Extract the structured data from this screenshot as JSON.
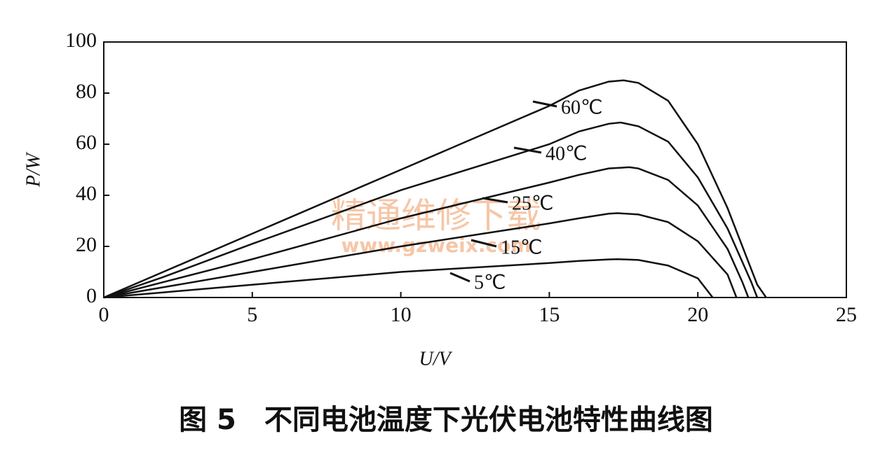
{
  "chart_data": {
    "type": "line",
    "caption": "图 5　不同电池温度下光伏电池特性曲线图",
    "xlabel": "U/V",
    "ylabel": "P/W",
    "watermark": "精通维修下载",
    "watermark_url": "www.gzweix.com",
    "xlim": [
      0,
      25
    ],
    "ylim": [
      0,
      100
    ],
    "xticks": [
      0,
      5,
      10,
      15,
      20,
      25
    ],
    "yticks": [
      0,
      20,
      40,
      60,
      80,
      100
    ],
    "grid": false,
    "series": [
      {
        "name": "60℃",
        "color": "#111111",
        "x": [
          0,
          2,
          5,
          10,
          15,
          16,
          17,
          17.5,
          18,
          19,
          20,
          21,
          22,
          22.3
        ],
        "values": [
          0,
          10,
          25,
          50,
          75,
          81,
          84.5,
          85,
          84,
          77,
          60,
          35,
          5,
          0
        ]
      },
      {
        "name": "40℃",
        "color": "#111111",
        "x": [
          0,
          2,
          5,
          10,
          15,
          16,
          17,
          17.4,
          18,
          19,
          20,
          21,
          21.8,
          22.0
        ],
        "values": [
          0,
          8,
          21,
          42,
          60,
          65,
          68,
          68.5,
          67,
          61,
          47,
          27,
          6,
          0
        ]
      },
      {
        "name": "25℃",
        "color": "#111111",
        "x": [
          0,
          2,
          5,
          10,
          15,
          16,
          17,
          17.7,
          18,
          19,
          20,
          21,
          21.5,
          21.7
        ],
        "values": [
          0,
          6,
          15,
          31,
          45,
          48,
          50.5,
          51,
          50.5,
          46,
          36,
          19,
          6,
          0
        ]
      },
      {
        "name": "15℃",
        "color": "#111111",
        "x": [
          0,
          2,
          5,
          10,
          15,
          16,
          17,
          17.3,
          18,
          19,
          20,
          21,
          21.3
        ],
        "values": [
          0,
          4,
          10,
          20,
          29,
          31,
          32.8,
          33,
          32.5,
          29.5,
          22,
          9,
          0
        ]
      },
      {
        "name": "5℃",
        "color": "#111111",
        "x": [
          0,
          2,
          5,
          10,
          15,
          16,
          17,
          17.3,
          18,
          19,
          20,
          20.5
        ],
        "values": [
          0,
          2,
          5,
          10,
          13.5,
          14.3,
          14.9,
          15,
          14.7,
          12.5,
          7.5,
          0
        ]
      }
    ]
  }
}
